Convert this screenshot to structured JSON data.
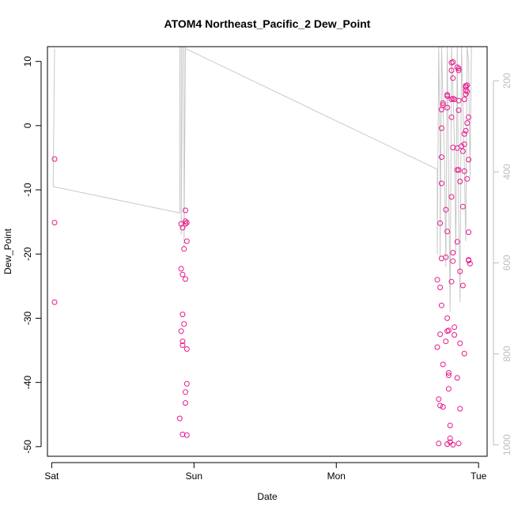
{
  "chart_data": {
    "type": "scatter",
    "title": "ATOM4 Northeast_Pacific_2 Dew_Point",
    "xlabel": "Date",
    "ylabel": "Dew_Point",
    "x_axis": {
      "range": [
        -0.03,
        3.06
      ],
      "ticks": [
        {
          "value": 0,
          "label": "Sat"
        },
        {
          "value": 1,
          "label": "Sun"
        },
        {
          "value": 2,
          "label": "Mon"
        },
        {
          "value": 3,
          "label": "Tue"
        }
      ]
    },
    "y_axis": {
      "range": [
        -51.5,
        12.3
      ],
      "ticks": [
        10,
        0,
        -10,
        -20,
        -30,
        -40,
        -50
      ]
    },
    "y_axis_right": {
      "range": [
        125,
        1025
      ],
      "inverted": true,
      "ticks": [
        200,
        400,
        600,
        800,
        1000
      ]
    },
    "point_color": "#e6198c",
    "trace_color": "#c8c8c8",
    "points": [
      [
        0.02,
        -5.2
      ],
      [
        0.02,
        -15.1
      ],
      [
        0.02,
        -27.5
      ],
      [
        0.91,
        -15.3
      ],
      [
        0.92,
        -15.9
      ],
      [
        0.91,
        -22.3
      ],
      [
        0.92,
        -23.2
      ],
      [
        0.93,
        -19.2
      ],
      [
        0.92,
        -29.4
      ],
      [
        0.93,
        -30.9
      ],
      [
        0.91,
        -32.0
      ],
      [
        0.92,
        -33.6
      ],
      [
        0.92,
        -34.2
      ],
      [
        0.94,
        -23.9
      ],
      [
        0.94,
        -13.2
      ],
      [
        0.94,
        -14.9
      ],
      [
        0.95,
        -15.1
      ],
      [
        0.94,
        -15.3
      ],
      [
        0.95,
        -18.0
      ],
      [
        0.95,
        -34.8
      ],
      [
        0.95,
        -40.2
      ],
      [
        0.94,
        -41.5
      ],
      [
        0.94,
        -43.2
      ],
      [
        0.9,
        -45.6
      ],
      [
        0.92,
        -48.1
      ],
      [
        0.95,
        -48.2
      ],
      [
        2.71,
        -24.0
      ],
      [
        2.73,
        -25.2
      ],
      [
        2.73,
        -15.2
      ],
      [
        2.74,
        -20.7
      ],
      [
        2.74,
        -28.0
      ],
      [
        2.73,
        -32.5
      ],
      [
        2.71,
        -34.5
      ],
      [
        2.75,
        -37.2
      ],
      [
        2.72,
        -42.6
      ],
      [
        2.73,
        -43.6
      ],
      [
        2.75,
        -43.8
      ],
      [
        2.72,
        -49.5
      ],
      [
        2.74,
        -4.9
      ],
      [
        2.74,
        -9.0
      ],
      [
        2.74,
        -0.4
      ],
      [
        2.74,
        2.5
      ],
      [
        2.75,
        3.2
      ],
      [
        2.75,
        3.5
      ],
      [
        2.77,
        -13.1
      ],
      [
        2.77,
        -20.5
      ],
      [
        2.78,
        -16.5
      ],
      [
        2.78,
        -30.0
      ],
      [
        2.77,
        -33.6
      ],
      [
        2.78,
        -32.0
      ],
      [
        2.79,
        -31.9
      ],
      [
        2.79,
        -38.5
      ],
      [
        2.79,
        -41.0
      ],
      [
        2.8,
        -48.7
      ],
      [
        2.8,
        -49.3
      ],
      [
        2.78,
        -49.6
      ],
      [
        2.8,
        -46.7
      ],
      [
        2.79,
        -38.9
      ],
      [
        2.81,
        -24.3
      ],
      [
        2.81,
        -11.1
      ],
      [
        2.82,
        -3.4
      ],
      [
        2.81,
        4.1
      ],
      [
        2.81,
        1.3
      ],
      [
        2.78,
        2.8
      ],
      [
        2.78,
        4.6
      ],
      [
        2.78,
        4.8
      ],
      [
        2.81,
        8.6
      ],
      [
        2.81,
        9.8
      ],
      [
        2.82,
        9.9
      ],
      [
        2.82,
        7.4
      ],
      [
        2.82,
        4.2
      ],
      [
        2.83,
        4.1
      ],
      [
        2.82,
        -19.8
      ],
      [
        2.82,
        -21.1
      ],
      [
        2.83,
        -31.4
      ],
      [
        2.83,
        -32.6
      ],
      [
        2.82,
        -49.7
      ],
      [
        2.85,
        -3.5
      ],
      [
        2.85,
        -6.9
      ],
      [
        2.86,
        -6.9
      ],
      [
        2.86,
        3.9
      ],
      [
        2.86,
        2.4
      ],
      [
        2.86,
        8.6
      ],
      [
        2.86,
        8.9
      ],
      [
        2.85,
        9.1
      ],
      [
        2.87,
        -8.7
      ],
      [
        2.87,
        -22.7
      ],
      [
        2.85,
        -18.1
      ],
      [
        2.85,
        -39.3
      ],
      [
        2.87,
        -33.9
      ],
      [
        2.87,
        -44.1
      ],
      [
        2.86,
        -49.5
      ],
      [
        2.88,
        -3.2
      ],
      [
        2.89,
        -4.0
      ],
      [
        2.9,
        -1.3
      ],
      [
        2.91,
        -0.8
      ],
      [
        2.9,
        -2.9
      ],
      [
        2.9,
        4.1
      ],
      [
        2.91,
        4.9
      ],
      [
        2.91,
        5.5
      ],
      [
        2.91,
        6.0
      ],
      [
        2.92,
        6.3
      ],
      [
        2.91,
        6.2
      ],
      [
        2.92,
        5.3
      ],
      [
        2.92,
        0.4
      ],
      [
        2.89,
        -12.6
      ],
      [
        2.9,
        -7.1
      ],
      [
        2.92,
        -8.3
      ],
      [
        2.93,
        -5.3
      ],
      [
        2.93,
        1.3
      ],
      [
        2.93,
        -16.6
      ],
      [
        2.93,
        -20.9
      ],
      [
        2.94,
        -21.5
      ],
      [
        2.93,
        -21.0
      ],
      [
        2.89,
        -24.9
      ],
      [
        2.9,
        -35.5
      ]
    ],
    "trace": [
      [
        0.02,
        12.0
      ],
      [
        0.01,
        -9.5
      ],
      [
        0.9,
        -13.6
      ],
      [
        0.9,
        12.3
      ],
      [
        0.91,
        12.3
      ],
      [
        0.91,
        -17.0
      ],
      [
        0.92,
        12.3
      ],
      [
        0.93,
        12.3
      ],
      [
        0.93,
        -19.0
      ],
      [
        0.94,
        12.3
      ],
      [
        0.94,
        12.0
      ],
      [
        2.71,
        -6.8
      ],
      [
        2.71,
        -20.0
      ],
      [
        2.72,
        12.3
      ],
      [
        2.73,
        -4.0
      ],
      [
        2.73,
        -20.5
      ],
      [
        2.74,
        12.3
      ],
      [
        2.76,
        -5.0
      ],
      [
        2.77,
        -22.0
      ],
      [
        2.78,
        12.3
      ],
      [
        2.79,
        -9.0
      ],
      [
        2.8,
        -29.0
      ],
      [
        2.81,
        12.3
      ],
      [
        2.83,
        -2.0
      ],
      [
        2.84,
        -20.0
      ],
      [
        2.85,
        12.3
      ],
      [
        2.86,
        -14.0
      ],
      [
        2.87,
        -27.5
      ],
      [
        2.88,
        12.3
      ],
      [
        2.9,
        -6.0
      ],
      [
        2.91,
        -18.0
      ],
      [
        2.92,
        12.3
      ],
      [
        2.93,
        10.0
      ],
      [
        2.94,
        -8.0
      ],
      [
        2.95,
        12.3
      ]
    ]
  }
}
